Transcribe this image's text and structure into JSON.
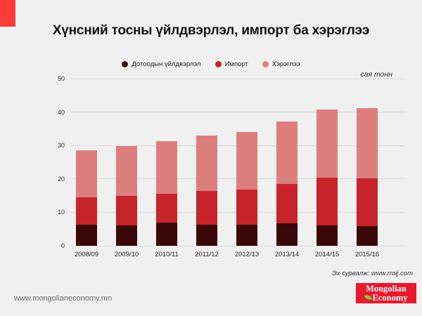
{
  "page": {
    "title": "Хүнсний тосны үйлдвэрлэл, импорт ба хэрэглээ",
    "unit_label": "сая тонн",
    "source": "Эх сурвалж: www.rroij.com",
    "website": "www.mongolianeconomy.mn",
    "logo": {
      "line1": "Mongolian",
      "line2": "Economy"
    }
  },
  "colors": {
    "background": "#f0f0f1",
    "corner_accent": "#fb3a3a",
    "gridline": "#dcdcdc",
    "production": "#3a0809",
    "import": "#c7232b",
    "consumption": "#dd7e7e",
    "logo_red": "#e8192c",
    "leaf_green": "#8dc63f"
  },
  "chart_data": {
    "type": "bar",
    "stacked": true,
    "title": "Хүнсний тосны үйлдвэрлэл, импорт ба хэрэглээ",
    "unit": "сая тонн",
    "categories": [
      "2008/09",
      "2009/10",
      "2010/11",
      "2011/12",
      "2012/13",
      "2013/14",
      "2014/15",
      "2015/16"
    ],
    "series": [
      {
        "name": "Дотоодын үйлдвэрлэл",
        "color": "#3a0809",
        "values": [
          6.3,
          6.0,
          7.0,
          6.4,
          6.3,
          6.7,
          6.0,
          5.8
        ]
      },
      {
        "name": "Импорт",
        "color": "#c7232b",
        "values": [
          8.2,
          8.9,
          8.5,
          10.0,
          10.5,
          11.8,
          14.4,
          14.4
        ]
      },
      {
        "name": "Хэрэглээ",
        "color": "#dd7e7e",
        "values": [
          14.0,
          14.9,
          15.8,
          16.5,
          17.3,
          18.7,
          20.4,
          21.0
        ]
      }
    ],
    "stack_totals": [
      28.5,
      29.8,
      31.3,
      32.9,
      34.1,
      37.2,
      40.8,
      41.2
    ],
    "ylim": [
      0,
      50
    ],
    "yticks": [
      0,
      10,
      20,
      30,
      40,
      50
    ],
    "grid": true,
    "legend_position": "top"
  }
}
